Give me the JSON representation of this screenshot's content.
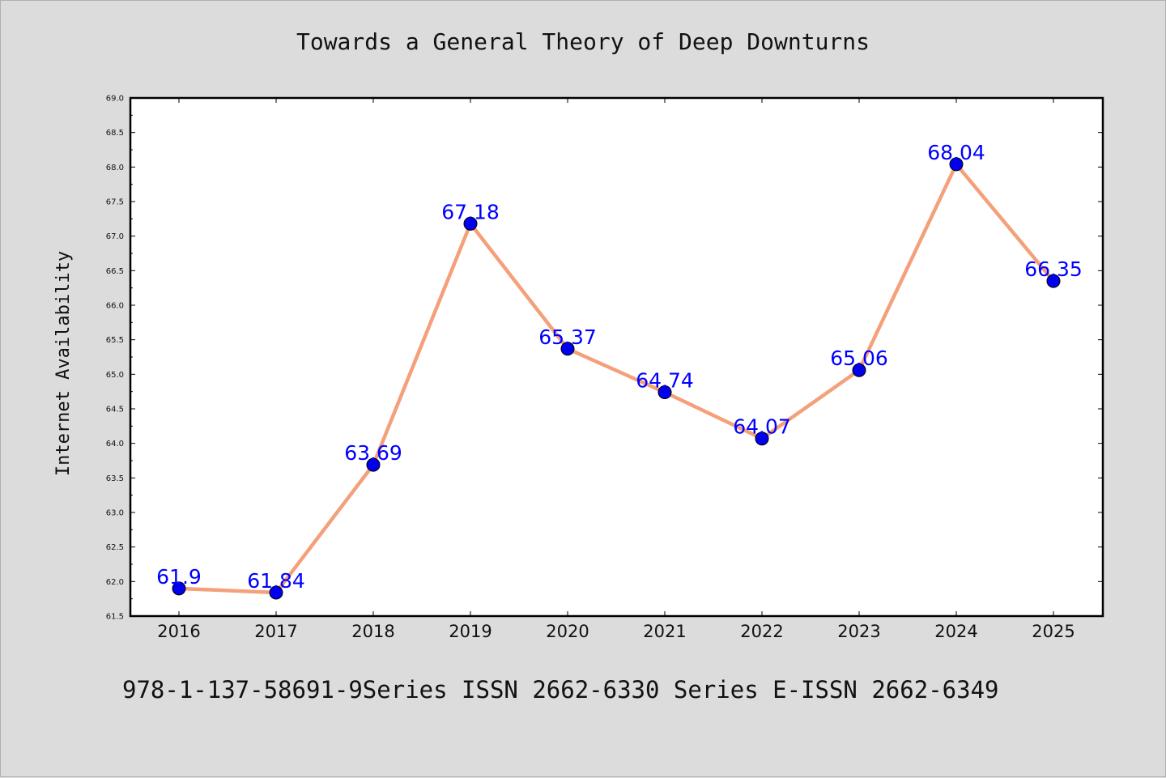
{
  "title": "Towards a General Theory of Deep Downturns",
  "footer": "978-1-137-58691-9Series ISSN 2662-6330 Series E-ISSN 2662-6349",
  "chart_data": {
    "type": "line",
    "title": "Towards a General Theory of Deep Downturns",
    "xlabel": "",
    "ylabel": "Internet Availability",
    "categories": [
      "2016",
      "2017",
      "2018",
      "2019",
      "2020",
      "2021",
      "2022",
      "2023",
      "2024",
      "2025"
    ],
    "series": [
      {
        "values": [
          61.9,
          61.84,
          63.69,
          67.18,
          65.37,
          64.74,
          64.07,
          65.06,
          68.04,
          66.35
        ],
        "labels": [
          "61.9",
          "61.84",
          "63.69",
          "67.18",
          "65.37",
          "64.74",
          "64.07",
          "65.06",
          "68.04",
          "66.35"
        ]
      }
    ],
    "ylim": [
      61.5,
      69.0
    ],
    "ytick_step": 0.5,
    "grid": false,
    "legend": "none",
    "colors": {
      "line": "#f4a07a",
      "marker": "#0000ee",
      "data_label": "#0000ff",
      "plot_background": "#ffffff",
      "figure_background": "#dcdcdc"
    }
  }
}
